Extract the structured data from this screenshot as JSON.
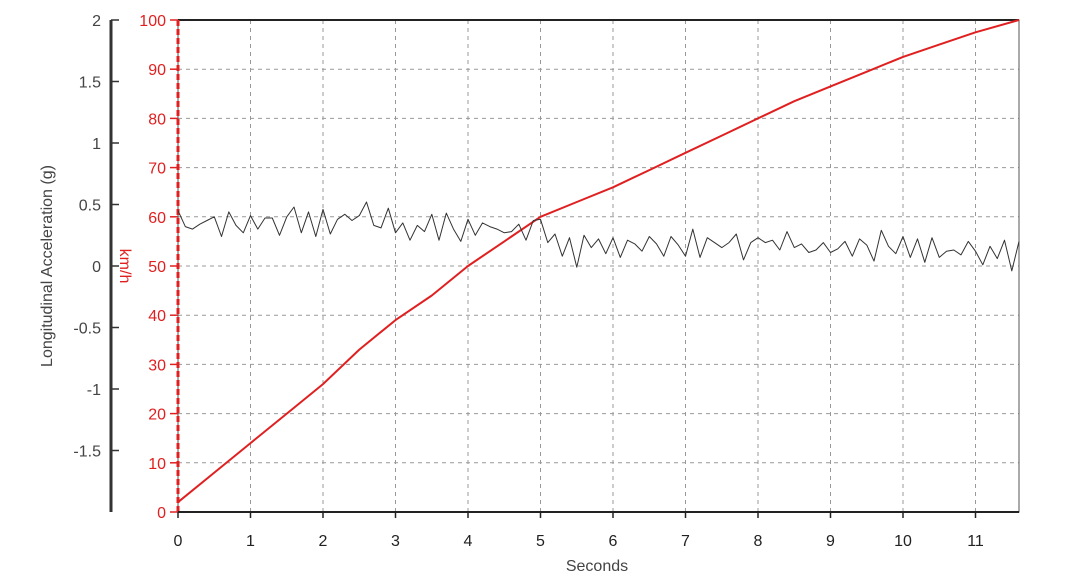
{
  "chart_data": {
    "type": "line",
    "xlabel": "Seconds",
    "ylabel_left": "Longitudinal Acceleration (g)",
    "ylabel_right": "km/h",
    "xlim": [
      0,
      11.6
    ],
    "ylim_left": [
      -2,
      2
    ],
    "ylim_right": [
      0,
      100
    ],
    "grid": true,
    "x_ticks": [
      "0",
      "1",
      "2",
      "3",
      "4",
      "5",
      "6",
      "7",
      "8",
      "9",
      "10",
      "11"
    ],
    "left_ticks": [
      "2",
      "1.5",
      "1",
      "0.5",
      "0",
      "-0.5",
      "-1",
      "-1.5"
    ],
    "right_ticks": [
      "100",
      "90",
      "80",
      "70",
      "60",
      "50",
      "40",
      "30",
      "20",
      "10",
      "0"
    ],
    "colors": {
      "speed": "#e02020",
      "accel": "#333333",
      "left_axis": "#444444",
      "right_axis": "#e02020",
      "grid": "#999999"
    },
    "series": [
      {
        "axis": "right",
        "x": [
          0,
          0.5,
          1,
          1.5,
          2,
          2.5,
          3,
          3.5,
          4,
          4.5,
          5,
          5.5,
          6,
          6.5,
          7,
          7.5,
          8,
          8.5,
          9,
          9.5,
          10,
          10.5,
          11,
          11.6
        ],
        "values": [
          2,
          8,
          14,
          20,
          26,
          33,
          39,
          44,
          50,
          55,
          60,
          63,
          66,
          69.5,
          73,
          76.5,
          80,
          83.5,
          86.5,
          89.5,
          92.5,
          95,
          97.5,
          100
        ]
      },
      {
        "axis": "left",
        "x": [
          0,
          0.1,
          0.2,
          0.3,
          0.4,
          0.5,
          0.6,
          0.7,
          0.8,
          0.9,
          1.0,
          1.1,
          1.2,
          1.3,
          1.4,
          1.5,
          1.6,
          1.7,
          1.8,
          1.9,
          2.0,
          2.1,
          2.2,
          2.3,
          2.4,
          2.5,
          2.6,
          2.7,
          2.8,
          2.9,
          3.0,
          3.1,
          3.2,
          3.3,
          3.4,
          3.5,
          3.6,
          3.7,
          3.8,
          3.9,
          4.0,
          4.1,
          4.2,
          4.3,
          4.4,
          4.5,
          4.6,
          4.7,
          4.8,
          4.9,
          5.0,
          5.1,
          5.2,
          5.3,
          5.4,
          5.5,
          5.6,
          5.7,
          5.8,
          5.9,
          6.0,
          6.1,
          6.2,
          6.3,
          6.4,
          6.5,
          6.6,
          6.7,
          6.8,
          6.9,
          7.0,
          7.1,
          7.2,
          7.3,
          7.4,
          7.5,
          7.6,
          7.7,
          7.8,
          7.9,
          8.0,
          8.1,
          8.2,
          8.3,
          8.4,
          8.5,
          8.6,
          8.7,
          8.8,
          8.9,
          9.0,
          9.1,
          9.2,
          9.3,
          9.4,
          9.5,
          9.6,
          9.7,
          9.8,
          9.9,
          10.0,
          10.1,
          10.2,
          10.3,
          10.4,
          10.5,
          10.6,
          10.7,
          10.8,
          10.9,
          11.0,
          11.1,
          11.2,
          11.3,
          11.4,
          11.5,
          11.6
        ],
        "values": [
          0.45,
          0.32,
          0.3,
          0.34,
          0.37,
          0.4,
          0.24,
          0.44,
          0.33,
          0.27,
          0.41,
          0.3,
          0.39,
          0.39,
          0.25,
          0.4,
          0.48,
          0.27,
          0.44,
          0.24,
          0.46,
          0.26,
          0.38,
          0.42,
          0.37,
          0.41,
          0.52,
          0.33,
          0.31,
          0.47,
          0.27,
          0.35,
          0.21,
          0.33,
          0.28,
          0.42,
          0.21,
          0.43,
          0.3,
          0.2,
          0.38,
          0.25,
          0.35,
          0.32,
          0.3,
          0.27,
          0.28,
          0.34,
          0.21,
          0.37,
          0.38,
          0.19,
          0.26,
          0.08,
          0.23,
          -0.01,
          0.25,
          0.15,
          0.22,
          0.1,
          0.23,
          0.07,
          0.21,
          0.18,
          0.12,
          0.24,
          0.18,
          0.08,
          0.24,
          0.17,
          0.08,
          0.3,
          0.07,
          0.23,
          0.19,
          0.15,
          0.19,
          0.26,
          0.05,
          0.19,
          0.23,
          0.19,
          0.21,
          0.13,
          0.28,
          0.15,
          0.18,
          0.11,
          0.13,
          0.19,
          0.11,
          0.14,
          0.2,
          0.08,
          0.22,
          0.17,
          0.04,
          0.29,
          0.16,
          0.1,
          0.24,
          0.07,
          0.22,
          0.03,
          0.23,
          0.07,
          0.12,
          0.13,
          0.09,
          0.2,
          0.12,
          0.01,
          0.16,
          0.06,
          0.21,
          -0.04,
          0.2
        ]
      }
    ]
  }
}
